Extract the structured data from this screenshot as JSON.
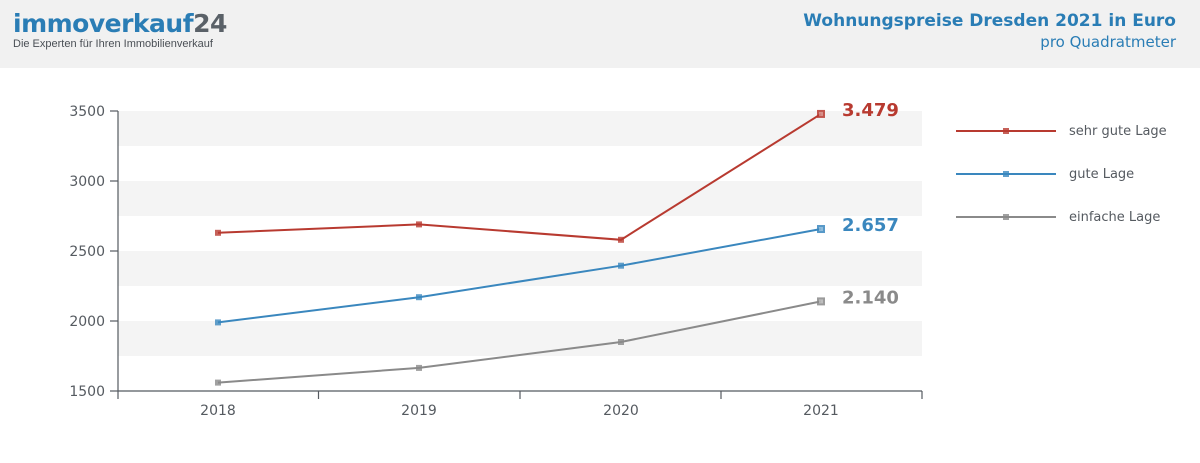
{
  "header": {
    "logo_text": "immoverkauf",
    "logo_number": "24",
    "logo_tagline": "Die Experten für Ihren Immobilienverkauf",
    "title": "Wohnungspreise Dresden 2021 in Euro",
    "subtitle": "pro Quadratmeter"
  },
  "chart_data": {
    "type": "line",
    "title": "Wohnungspreise Dresden 2021 in Euro",
    "subtitle": "pro Quadratmeter",
    "x": [
      "2018",
      "2019",
      "2020",
      "2021"
    ],
    "ylim": [
      1500,
      3500
    ],
    "yticks": [
      "3500",
      "3000",
      "2500",
      "2000",
      "1500"
    ],
    "grid": "horizontal bands",
    "legend": "right",
    "series": [
      {
        "name": "sehr gute Lage",
        "values": [
          2630,
          2690,
          2580,
          3479
        ],
        "color": "#b83a30",
        "end_label": "3.479"
      },
      {
        "name": "gute Lage",
        "values": [
          1990,
          2170,
          2395,
          2657
        ],
        "color": "#3a87be",
        "end_label": "2.657"
      },
      {
        "name": "einfache Lage",
        "values": [
          1560,
          1665,
          1850,
          2140
        ],
        "color": "#8a8a8a",
        "end_label": "2.140"
      }
    ]
  }
}
